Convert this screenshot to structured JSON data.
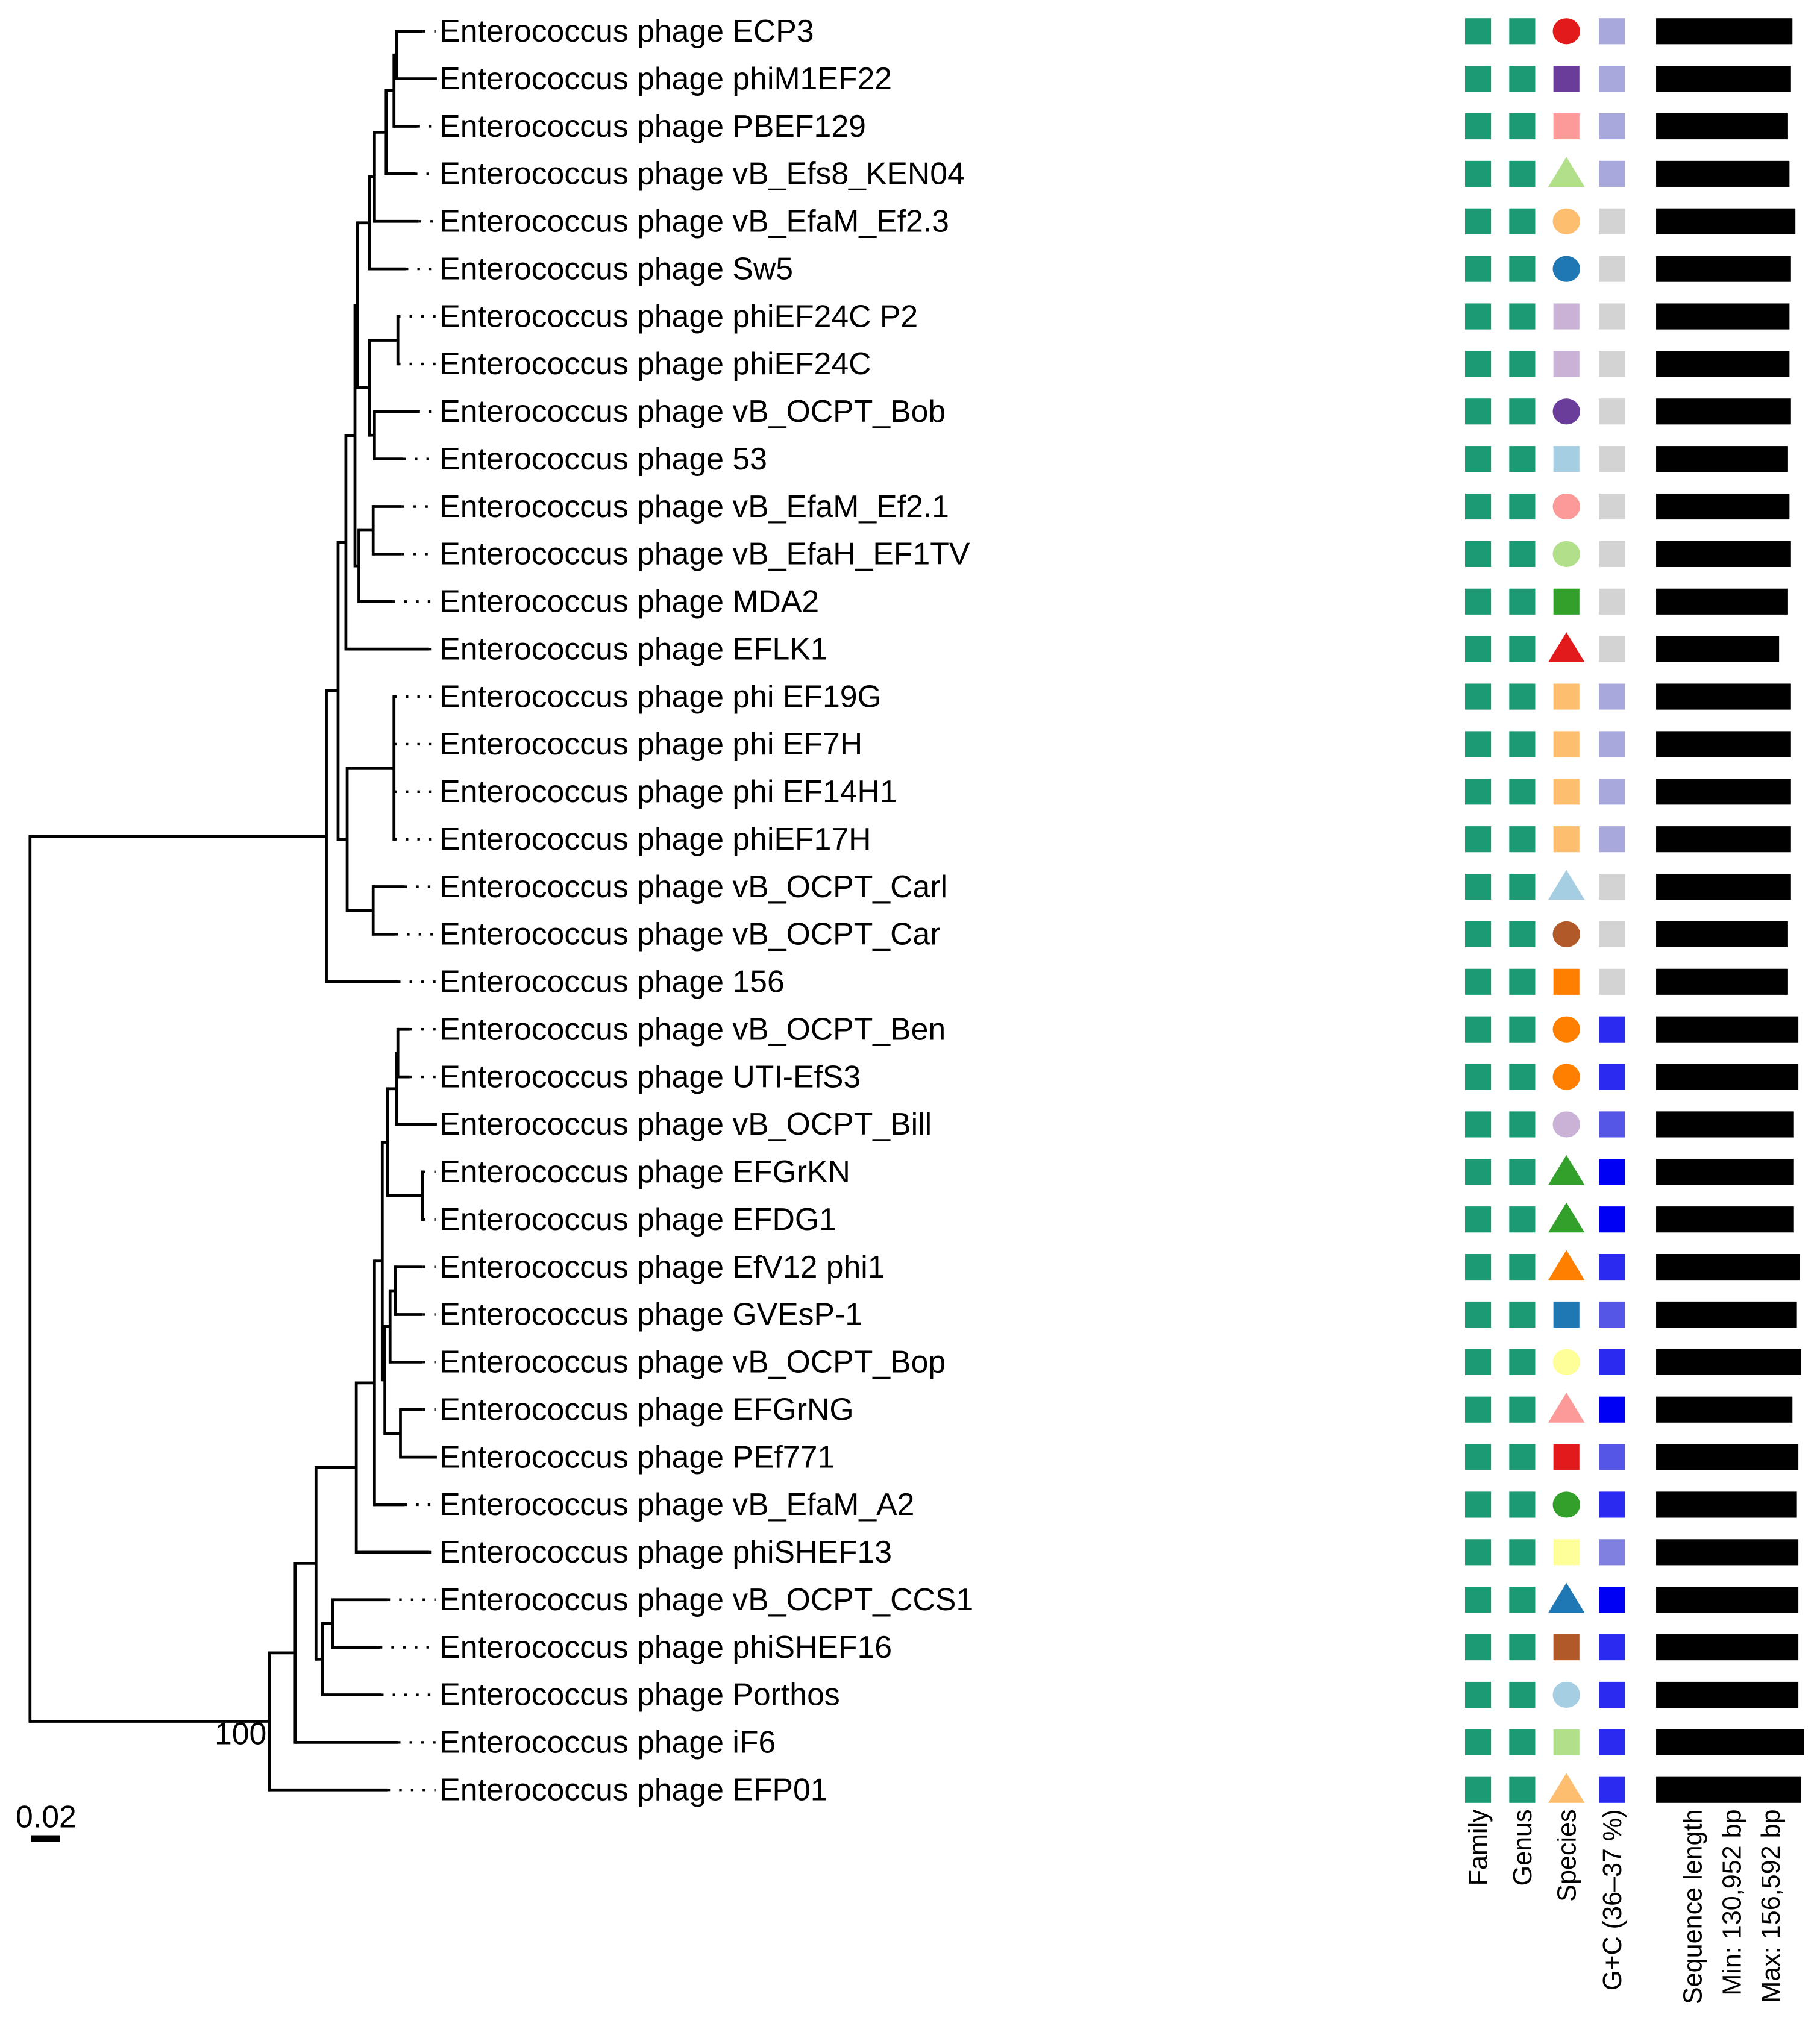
{
  "colors": {
    "branch": "#000000",
    "highlight_label": "#c0262d",
    "family": "#1b9a73",
    "genus": "#1b9a73",
    "bar": "#000000"
  },
  "tree": {
    "bootstrap_root": "100",
    "scale_bar_label": "0.02",
    "highlight_row": 3
  },
  "columns": {
    "family": "Family",
    "genus": "Genus",
    "species": "Species",
    "gc": "G+C (36–37 %)",
    "seq_title": "Sequence length",
    "seq_min": "Min: 130,952 bp",
    "seq_max": "Max: 156,592 bp"
  },
  "taxa": [
    {
      "name": "Enterococcus phage ECP3",
      "species_shape": "circle",
      "species_color": "#e31a1c",
      "gc_color": "#a8a8dc",
      "length_fraction": 0.92
    },
    {
      "name": "Enterococcus phage phiM1EF22",
      "species_shape": "square",
      "species_color": "#6a3d9a",
      "gc_color": "#a8a8dc",
      "length_fraction": 0.91
    },
    {
      "name": "Enterococcus phage PBEF129",
      "species_shape": "square",
      "species_color": "#fb9a99",
      "gc_color": "#a8a8dc",
      "length_fraction": 0.89
    },
    {
      "name": "Enterococcus phage vB_Efs8_KEN04",
      "species_shape": "triangle",
      "species_color": "#b2df8a",
      "gc_color": "#a8a8dc",
      "length_fraction": 0.9
    },
    {
      "name": "Enterococcus phage vB_EfaM_Ef2.3",
      "species_shape": "circle",
      "species_color": "#fdbf6f",
      "gc_color": "#d3d3d3",
      "length_fraction": 0.94
    },
    {
      "name": "Enterococcus phage Sw5",
      "species_shape": "circle",
      "species_color": "#1f78b4",
      "gc_color": "#d3d3d3",
      "length_fraction": 0.91
    },
    {
      "name": "Enterococcus phage phiEF24C P2",
      "species_shape": "square",
      "species_color": "#cab2d6",
      "gc_color": "#d3d3d3",
      "length_fraction": 0.9
    },
    {
      "name": "Enterococcus phage phiEF24C",
      "species_shape": "square",
      "species_color": "#cab2d6",
      "gc_color": "#d3d3d3",
      "length_fraction": 0.9
    },
    {
      "name": "Enterococcus phage vB_OCPT_Bob",
      "species_shape": "circle",
      "species_color": "#6a3d9a",
      "gc_color": "#d3d3d3",
      "length_fraction": 0.91
    },
    {
      "name": "Enterococcus phage 53",
      "species_shape": "square",
      "species_color": "#a6cee3",
      "gc_color": "#d3d3d3",
      "length_fraction": 0.89
    },
    {
      "name": "Enterococcus phage vB_EfaM_Ef2.1",
      "species_shape": "circle",
      "species_color": "#fb9a99",
      "gc_color": "#d3d3d3",
      "length_fraction": 0.9
    },
    {
      "name": "Enterococcus phage vB_EfaH_EF1TV",
      "species_shape": "circle",
      "species_color": "#b2df8a",
      "gc_color": "#d3d3d3",
      "length_fraction": 0.91
    },
    {
      "name": "Enterococcus phage MDA2",
      "species_shape": "square",
      "species_color": "#33a02c",
      "gc_color": "#d3d3d3",
      "length_fraction": 0.89
    },
    {
      "name": "Enterococcus phage EFLK1",
      "species_shape": "triangle",
      "species_color": "#e31a1c",
      "gc_color": "#d3d3d3",
      "length_fraction": 0.83
    },
    {
      "name": "Enterococcus phage phi EF19G",
      "species_shape": "square",
      "species_color": "#fdbf6f",
      "gc_color": "#a8a8dc",
      "length_fraction": 0.91
    },
    {
      "name": "Enterococcus phage phi EF7H",
      "species_shape": "square",
      "species_color": "#fdbf6f",
      "gc_color": "#a8a8dc",
      "length_fraction": 0.91
    },
    {
      "name": "Enterococcus phage phi EF14H1",
      "species_shape": "square",
      "species_color": "#fdbf6f",
      "gc_color": "#a8a8dc",
      "length_fraction": 0.91
    },
    {
      "name": "Enterococcus phage phiEF17H",
      "species_shape": "square",
      "species_color": "#fdbf6f",
      "gc_color": "#a8a8dc",
      "length_fraction": 0.91
    },
    {
      "name": "Enterococcus phage vB_OCPT_Carl",
      "species_shape": "triangle",
      "species_color": "#a6cee3",
      "gc_color": "#d3d3d3",
      "length_fraction": 0.91
    },
    {
      "name": "Enterococcus phage vB_OCPT_Car",
      "species_shape": "circle",
      "species_color": "#b15928",
      "gc_color": "#d3d3d3",
      "length_fraction": 0.89
    },
    {
      "name": "Enterococcus phage 156",
      "species_shape": "square",
      "species_color": "#ff7f00",
      "gc_color": "#d3d3d3",
      "length_fraction": 0.89
    },
    {
      "name": "Enterococcus phage vB_OCPT_Ben",
      "species_shape": "circle",
      "species_color": "#ff7f00",
      "gc_color": "#2a2af0",
      "length_fraction": 0.96
    },
    {
      "name": "Enterococcus phage UTI-EfS3",
      "species_shape": "circle",
      "species_color": "#ff7f00",
      "gc_color": "#2a2af0",
      "length_fraction": 0.96
    },
    {
      "name": "Enterococcus phage vB_OCPT_Bill",
      "species_shape": "circle",
      "species_color": "#cab2d6",
      "gc_color": "#5555e6",
      "length_fraction": 0.93
    },
    {
      "name": "Enterococcus phage EFGrKN",
      "species_shape": "triangle",
      "species_color": "#33a02c",
      "gc_color": "#0000f5",
      "length_fraction": 0.93
    },
    {
      "name": "Enterococcus phage EFDG1",
      "species_shape": "triangle",
      "species_color": "#33a02c",
      "gc_color": "#0000f5",
      "length_fraction": 0.93
    },
    {
      "name": "Enterococcus phage EfV12 phi1",
      "species_shape": "triangle",
      "species_color": "#ff7f00",
      "gc_color": "#2a2af0",
      "length_fraction": 0.97
    },
    {
      "name": "Enterococcus phage GVEsP-1",
      "species_shape": "square",
      "species_color": "#1f78b4",
      "gc_color": "#5555e6",
      "length_fraction": 0.95
    },
    {
      "name": "Enterococcus phage vB_OCPT_Bop",
      "species_shape": "circle",
      "species_color": "#ffff99",
      "gc_color": "#2a2af0",
      "length_fraction": 0.98
    },
    {
      "name": "Enterococcus phage EFGrNG",
      "species_shape": "triangle",
      "species_color": "#fb9a99",
      "gc_color": "#0000f5",
      "length_fraction": 0.92
    },
    {
      "name": "Enterococcus phage PEf771",
      "species_shape": "square",
      "species_color": "#e31a1c",
      "gc_color": "#5555e6",
      "length_fraction": 0.96
    },
    {
      "name": "Enterococcus phage vB_EfaM_A2",
      "species_shape": "circle",
      "species_color": "#33a02c",
      "gc_color": "#2a2af0",
      "length_fraction": 0.95
    },
    {
      "name": "Enterococcus phage phiSHEF13",
      "species_shape": "square",
      "species_color": "#ffff99",
      "gc_color": "#8080e0",
      "length_fraction": 0.96
    },
    {
      "name": "Enterococcus phage vB_OCPT_CCS1",
      "species_shape": "triangle",
      "species_color": "#1f78b4",
      "gc_color": "#0000f5",
      "length_fraction": 0.96
    },
    {
      "name": "Enterococcus phage phiSHEF16",
      "species_shape": "square",
      "species_color": "#b15928",
      "gc_color": "#2a2af0",
      "length_fraction": 0.96
    },
    {
      "name": "Enterococcus phage Porthos",
      "species_shape": "circle",
      "species_color": "#a6cee3",
      "gc_color": "#2a2af0",
      "length_fraction": 0.96
    },
    {
      "name": "Enterococcus phage iF6",
      "species_shape": "square",
      "species_color": "#b2df8a",
      "gc_color": "#2a2af0",
      "length_fraction": 1.0
    },
    {
      "name": "Enterococcus phage EFP01",
      "species_shape": "triangle",
      "species_color": "#fdbf6f",
      "gc_color": "#2a2af0",
      "length_fraction": 0.98
    }
  ]
}
